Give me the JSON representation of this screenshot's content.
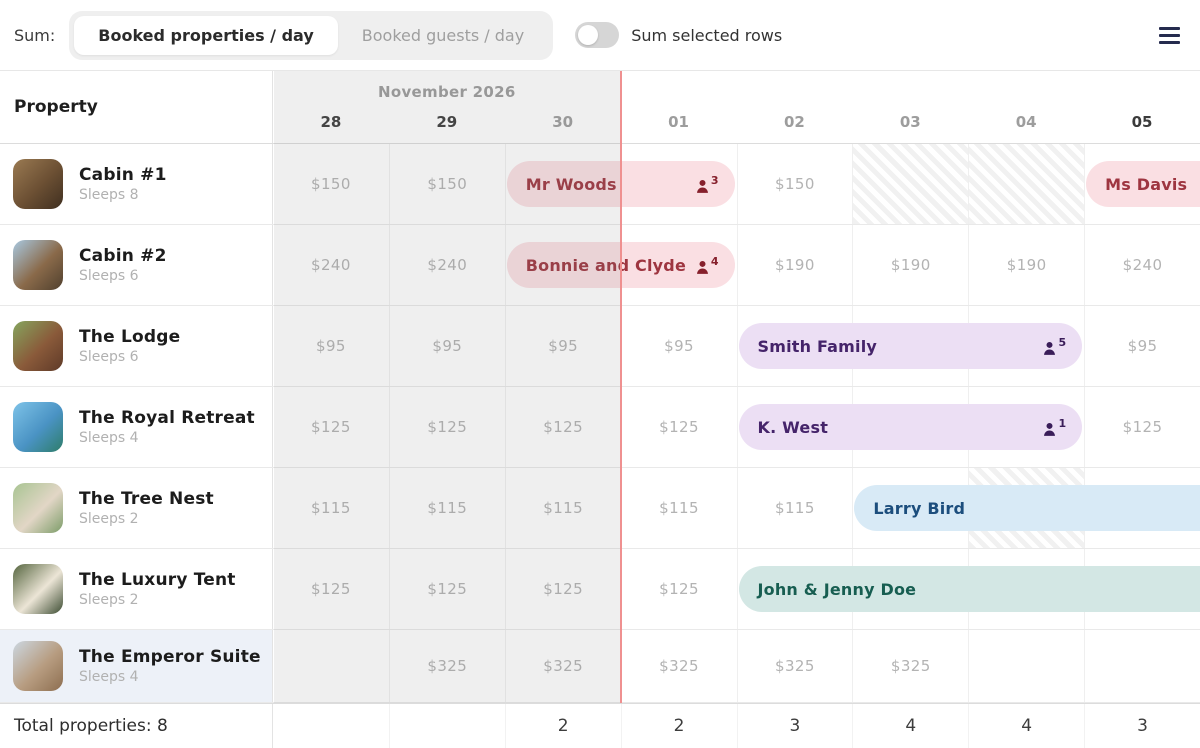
{
  "toolbar": {
    "sum_label": "Sum:",
    "segments": [
      {
        "label": "Booked properties / day",
        "selected": true
      },
      {
        "label": "Booked guests / day",
        "selected": false
      }
    ],
    "toggle_label": "Sum selected rows",
    "toggle_on": false,
    "menu_icon": "hamburger-icon"
  },
  "calendar": {
    "month_label": "November 2026",
    "property_header": "Property",
    "days": [
      {
        "label": "28",
        "past": true,
        "weekend": true
      },
      {
        "label": "29",
        "past": true,
        "weekend": true
      },
      {
        "label": "30",
        "past": true,
        "weekend": false
      },
      {
        "label": "01",
        "past": false,
        "weekend": false
      },
      {
        "label": "02",
        "past": false,
        "weekend": false
      },
      {
        "label": "03",
        "past": false,
        "weekend": false
      },
      {
        "label": "04",
        "past": false,
        "weekend": false
      },
      {
        "label": "05",
        "past": false,
        "weekend": true
      }
    ]
  },
  "colors": {
    "today_line": "#ef9090",
    "past_tint": "rgba(128,128,128,0.13)",
    "menu_icon": "#252b4e"
  },
  "booking_themes": {
    "pink": {
      "bg": "#fadfe3",
      "text": "#9e3540",
      "icon": "#86202c"
    },
    "purple": {
      "bg": "#ecdff4",
      "text": "#45246a",
      "icon": "#3a1d59"
    },
    "blue": {
      "bg": "#d8eaf6",
      "text": "#1c4e7d",
      "icon": "#1c4e7d"
    },
    "teal": {
      "bg": "#d3e7e4",
      "text": "#175e51",
      "icon": "#175e51"
    }
  },
  "rows": [
    {
      "name": "Cabin #1",
      "sleeps": "Sleeps 8",
      "highlighted": false,
      "thumb_colors": [
        "#9a7a52",
        "#6b4f33",
        "#3f2f20"
      ],
      "prices": [
        "$150",
        "$150",
        "",
        "",
        "$150",
        "",
        "",
        ""
      ],
      "hatched": [
        5,
        6
      ],
      "bookings": [
        {
          "guest": "Mr Woods",
          "guests_count": "3",
          "start": 2,
          "span": 2,
          "clipped": false,
          "theme": "pink"
        },
        {
          "guest": "Ms Davis",
          "guests_count": "",
          "start": 7,
          "span": 1,
          "clipped": true,
          "theme": "pink"
        }
      ]
    },
    {
      "name": "Cabin #2",
      "sleeps": "Sleeps 6",
      "highlighted": false,
      "thumb_colors": [
        "#a8c8e0",
        "#8a6a4a",
        "#50402e"
      ],
      "prices": [
        "$240",
        "$240",
        "",
        "",
        "$190",
        "$190",
        "$190",
        "$240"
      ],
      "hatched": [],
      "bookings": [
        {
          "guest": "Bonnie and Clyde",
          "guests_count": "4",
          "start": 2,
          "span": 2,
          "clipped": false,
          "theme": "pink"
        }
      ]
    },
    {
      "name": "The Lodge",
      "sleeps": "Sleeps 6",
      "highlighted": false,
      "thumb_colors": [
        "#86a55e",
        "#8a5a3a",
        "#5e3a28"
      ],
      "prices": [
        "$95",
        "$95",
        "$95",
        "$95",
        "",
        "",
        "",
        "$95"
      ],
      "hatched": [],
      "bookings": [
        {
          "guest": "Smith Family",
          "guests_count": "5",
          "start": 4,
          "span": 3,
          "clipped": false,
          "theme": "purple"
        }
      ]
    },
    {
      "name": "The Royal Retreat",
      "sleeps": "Sleeps 4",
      "highlighted": false,
      "thumb_colors": [
        "#7ec3e8",
        "#4a93c4",
        "#2e7d6a"
      ],
      "prices": [
        "$125",
        "$125",
        "$125",
        "$125",
        "",
        "",
        "",
        "$125"
      ],
      "hatched": [],
      "bookings": [
        {
          "guest": "K. West",
          "guests_count": "1",
          "start": 4,
          "span": 3,
          "clipped": false,
          "theme": "purple"
        }
      ]
    },
    {
      "name": "The Tree Nest",
      "sleeps": "Sleeps 2",
      "highlighted": false,
      "thumb_colors": [
        "#a8c492",
        "#e2d6c6",
        "#7c9c68"
      ],
      "prices": [
        "$115",
        "$115",
        "$115",
        "$115",
        "$115",
        "",
        "",
        ""
      ],
      "hatched": [
        6
      ],
      "bookings": [
        {
          "guest": "Larry Bird",
          "guests_count": "",
          "start": 5,
          "span": 3,
          "clipped": true,
          "theme": "blue"
        }
      ]
    },
    {
      "name": "The Luxury Tent",
      "sleeps": "Sleeps 2",
      "highlighted": false,
      "thumb_colors": [
        "#55653f",
        "#ece5d6",
        "#3c4c32"
      ],
      "prices": [
        "$125",
        "$125",
        "$125",
        "$125",
        "",
        "",
        "",
        ""
      ],
      "hatched": [],
      "bookings": [
        {
          "guest": "John & Jenny Doe",
          "guests_count": "",
          "start": 4,
          "span": 4,
          "clipped": true,
          "theme": "teal"
        }
      ]
    },
    {
      "name": "The Emperor Suite",
      "sleeps": "Sleeps 4",
      "highlighted": true,
      "compact": true,
      "thumb_colors": [
        "#ccd7e1",
        "#b79c80",
        "#8d6e50"
      ],
      "prices": [
        "",
        "$325",
        "$325",
        "$325",
        "$325",
        "$325",
        "",
        ""
      ],
      "hatched": [],
      "bookings": []
    }
  ],
  "totals": {
    "label": "Total properties: 8",
    "values": [
      "",
      "",
      "2",
      "2",
      "3",
      "4",
      "4",
      "3"
    ]
  }
}
